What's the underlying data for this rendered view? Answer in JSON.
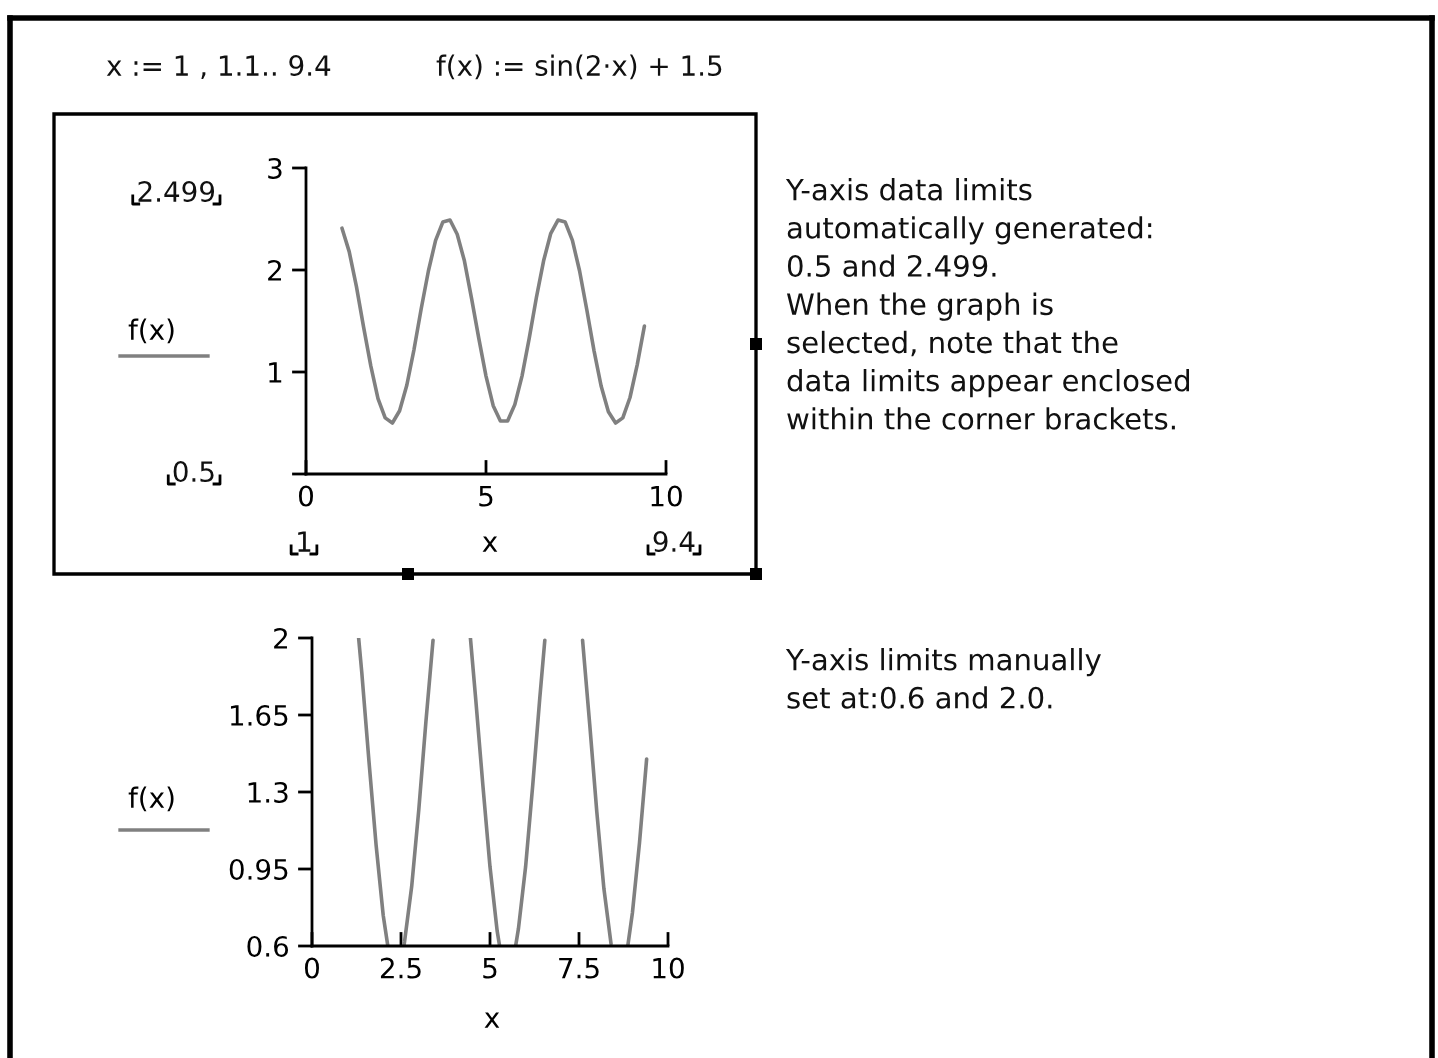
{
  "chart_data": [
    {
      "type": "line",
      "xlabel": "x",
      "ylabel": "f(x)",
      "x": [
        1.0,
        1.2,
        1.4,
        1.6,
        1.8,
        2.0,
        2.2,
        2.4,
        2.6,
        2.8,
        3.0,
        3.2,
        3.4,
        3.6,
        3.8,
        4.0,
        4.2,
        4.4,
        4.6,
        4.8,
        5.0,
        5.2,
        5.4,
        5.6,
        5.8,
        6.0,
        6.2,
        6.4,
        6.6,
        6.8,
        7.0,
        7.2,
        7.4,
        7.6,
        7.8,
        8.0,
        8.2,
        8.4,
        8.6,
        8.8,
        9.0,
        9.2,
        9.4
      ],
      "series": [
        {
          "color": "#808080",
          "values": [
            2.41,
            2.18,
            1.84,
            1.44,
            1.06,
            0.74,
            0.55,
            0.5,
            0.62,
            0.87,
            1.22,
            1.62,
            1.99,
            2.29,
            2.47,
            2.49,
            2.35,
            2.09,
            1.72,
            1.33,
            0.96,
            0.67,
            0.52,
            0.52,
            0.68,
            0.96,
            1.33,
            1.73,
            2.09,
            2.36,
            2.49,
            2.47,
            2.29,
            1.99,
            1.61,
            1.21,
            0.86,
            0.61,
            0.5,
            0.55,
            0.75,
            1.07,
            1.45
          ]
        }
      ],
      "xlim": [
        0,
        10
      ],
      "xticks": [
        0,
        5,
        10
      ],
      "ylim": [
        0,
        3
      ],
      "yticks": [
        {
          "value": 0,
          "label": null
        },
        1,
        2,
        3
      ],
      "annotations": [
        "x := 1 , 1.1.. 9.4",
        "f(x) := sin(2·x) + 1.5",
        "2.499",
        "0.5",
        "1",
        "9.4",
        "Y-axis data limits\nautomatically generated:\n0.5 and 2.499.\nWhen the graph is\nselected, note that the\ndata limits appear enclosed\nwithin the corner brackets."
      ]
    },
    {
      "type": "line",
      "xlabel": "x",
      "ylabel": "f(x)",
      "x": [
        1.31,
        1.4,
        1.6,
        1.8,
        2.0,
        2.13,
        2.36,
        2.58,
        2.6,
        2.8,
        3.0,
        3.2,
        3.4,
        3.93,
        4.45,
        4.6,
        4.8,
        5.0,
        5.2,
        5.27,
        5.5,
        5.72,
        5.8,
        6.0,
        6.2,
        6.4,
        6.54,
        7.07,
        7.6,
        7.8,
        8.0,
        8.2,
        8.4,
        8.64,
        8.87,
        9.0,
        9.2,
        9.4
      ],
      "series": [
        {
          "color": "#808080",
          "values": [
            2,
            1.84,
            1.44,
            1.06,
            0.74,
            0.6,
            null,
            0.6,
            0.62,
            0.87,
            1.22,
            1.62,
            1.99,
            null,
            2,
            1.72,
            1.33,
            0.96,
            0.67,
            0.6,
            null,
            0.6,
            0.68,
            0.96,
            1.33,
            1.73,
            1.99,
            null,
            1.99,
            1.61,
            1.21,
            0.86,
            0.61,
            null,
            0.6,
            0.75,
            1.07,
            1.45
          ]
        }
      ],
      "xlim": [
        0,
        10
      ],
      "xticks": [
        0,
        2.5,
        5,
        7.5,
        10
      ],
      "ylim": [
        0.6,
        2
      ],
      "yticks": [
        0.6,
        0.95,
        1.3,
        1.65,
        2
      ],
      "annotations": [
        "Y-axis limits manually\nset at:0.6 and 2.0."
      ]
    }
  ]
}
